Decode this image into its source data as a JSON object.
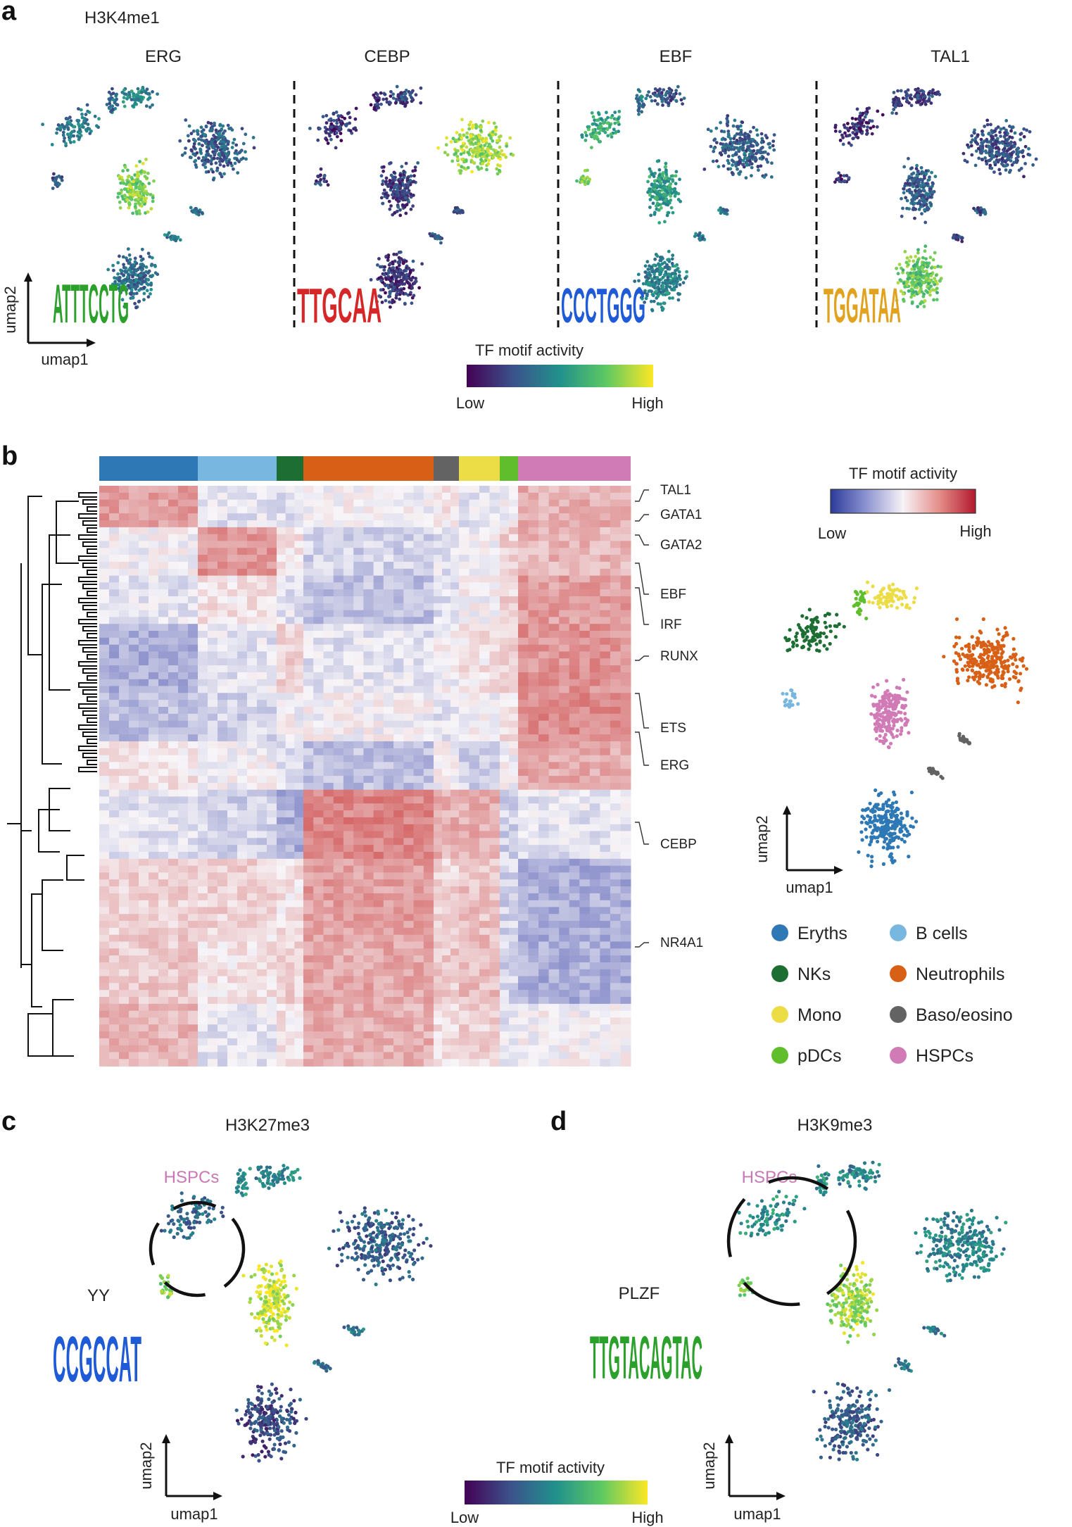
{
  "panel_a": {
    "label": "a",
    "mark": "H3K4me1",
    "titles": [
      "ERG",
      "CEBP",
      "EBF",
      "TAL1"
    ],
    "xlabel": "umap1",
    "ylabel": "umap2",
    "colorbar": {
      "title": "TF motif activity",
      "low": "Low",
      "high": "High"
    }
  },
  "panel_b": {
    "label": "b",
    "tf_labels": [
      "TAL1",
      "GATA1",
      "GATA2",
      "EBF",
      "IRF",
      "RUNX",
      "ETS",
      "ERG",
      "CEBP",
      "NR4A1"
    ],
    "colorbar": {
      "title": "TF motif activity",
      "low": "Low",
      "high": "High"
    },
    "xlabel": "umap1",
    "ylabel": "umap2",
    "legend": [
      {
        "name": "Eryths",
        "color": "#2d78b5"
      },
      {
        "name": "B cells",
        "color": "#78b8e0"
      },
      {
        "name": "NKs",
        "color": "#1d6e32"
      },
      {
        "name": "Neutrophils",
        "color": "#d86016"
      },
      {
        "name": "Mono",
        "color": "#ecdc46"
      },
      {
        "name": "Baso/eosino",
        "color": "#636363"
      },
      {
        "name": "pDCs",
        "color": "#60be2c"
      },
      {
        "name": "HSPCs",
        "color": "#d07ab6"
      }
    ]
  },
  "panel_c": {
    "label": "c",
    "mark": "H3K27me3",
    "highlight": "HSPCs",
    "motif": "YY",
    "xlabel": "umap1",
    "ylabel": "umap2"
  },
  "panel_d": {
    "label": "d",
    "mark": "H3K9me3",
    "highlight": "HSPCs",
    "motif": "PLZF",
    "xlabel": "umap1",
    "ylabel": "umap2"
  },
  "colorbar_cd": {
    "title": "TF motif activity",
    "low": "Low",
    "high": "High"
  },
  "colors": {
    "hspc_label": "#c978b6",
    "viridis_low": "#440154",
    "viridis_high": "#fde725",
    "rdbu_low": "#2b3b9a",
    "rdbu_high": "#b2182b"
  }
}
